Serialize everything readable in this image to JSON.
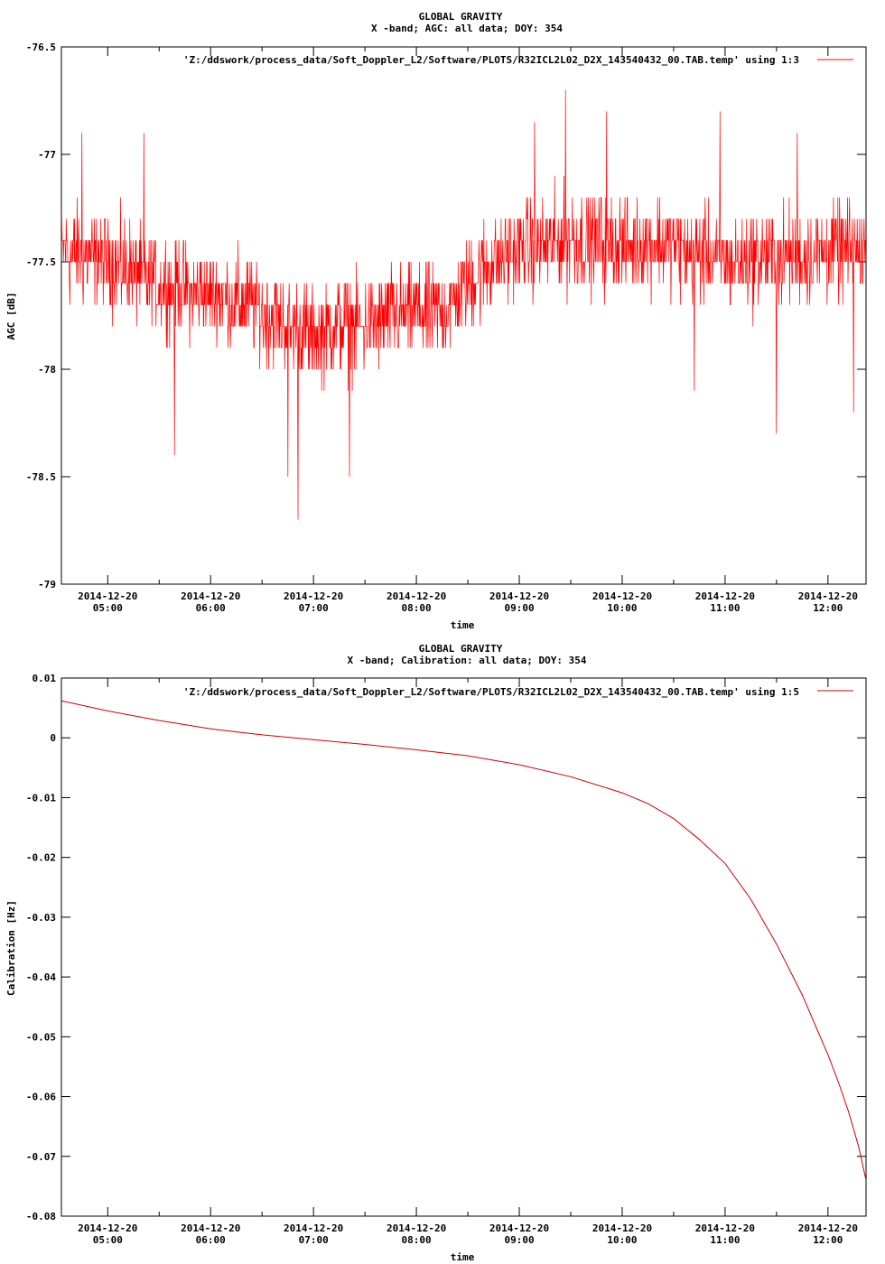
{
  "chart_data": [
    {
      "type": "line",
      "title": "GLOBAL GRAVITY",
      "subtitle": "X -band; AGC: all data; DOY: 354",
      "xlabel": "time",
      "ylabel": "AGC [dB]",
      "ylim": [
        -79,
        -76.5
      ],
      "yticks": [
        "-76.5",
        "-77",
        "-77.5",
        "-78",
        "-78.5",
        "-79"
      ],
      "ytick_values": [
        -76.5,
        -77,
        -77.5,
        -78,
        -78.5,
        -79
      ],
      "xlim_hours": [
        4.55,
        12.37
      ],
      "xticks_hours": [
        5,
        6,
        7,
        8,
        9,
        10,
        11,
        12
      ],
      "xtick_dates": [
        "2014-12-20",
        "2014-12-20",
        "2014-12-20",
        "2014-12-20",
        "2014-12-20",
        "2014-12-20",
        "2014-12-20",
        "2014-12-20"
      ],
      "xtick_times": [
        "05:00",
        "06:00",
        "07:00",
        "08:00",
        "09:00",
        "10:00",
        "11:00",
        "12:00"
      ],
      "minor_xticks_hours": [
        5.5,
        6.5,
        7.5,
        8.5,
        9.5,
        10.5,
        11.5
      ],
      "legend": "'Z:/ddswork/process_data/Soft_Doppler_L2/Software/PLOTS/R32ICL2L02_D2X_143540432_00.TAB.temp' using 1:3",
      "legend_position": "top-right",
      "grid": false,
      "series": [
        {
          "color": "#ff0000",
          "trend_x": [
            4.55,
            5.0,
            5.5,
            6.0,
            6.5,
            6.75,
            7.0,
            7.25,
            7.5,
            8.0,
            8.25,
            8.5,
            8.75,
            9.0,
            9.5,
            10.0,
            10.5,
            11.0,
            11.5,
            12.0,
            12.37
          ],
          "trend_y": [
            -77.45,
            -77.5,
            -77.6,
            -77.65,
            -77.72,
            -77.8,
            -77.85,
            -77.8,
            -77.8,
            -77.72,
            -77.75,
            -77.6,
            -77.5,
            -77.45,
            -77.4,
            -77.42,
            -77.42,
            -77.5,
            -77.48,
            -77.45,
            -77.45
          ],
          "spread": 0.2,
          "spikes": [
            {
              "x": 6.85,
              "y": -78.7
            },
            {
              "x": 6.75,
              "y": -78.5
            },
            {
              "x": 9.45,
              "y": -76.7
            },
            {
              "x": 9.15,
              "y": -76.85
            },
            {
              "x": 9.85,
              "y": -76.8
            },
            {
              "x": 5.35,
              "y": -76.9
            },
            {
              "x": 4.75,
              "y": -76.9
            },
            {
              "x": 10.95,
              "y": -76.8
            },
            {
              "x": 11.7,
              "y": -76.9
            },
            {
              "x": 11.5,
              "y": -78.3
            },
            {
              "x": 5.65,
              "y": -78.4
            },
            {
              "x": 7.35,
              "y": -78.5
            },
            {
              "x": 10.7,
              "y": -78.1
            },
            {
              "x": 12.25,
              "y": -78.2
            }
          ]
        }
      ]
    },
    {
      "type": "line",
      "title": "GLOBAL GRAVITY",
      "subtitle": "X -band; Calibration: all data; DOY: 354",
      "xlabel": "time",
      "ylabel": "Calibration [Hz]",
      "ylim": [
        -0.08,
        0.01
      ],
      "yticks": [
        "0.01",
        "0",
        "-0.01",
        "-0.02",
        "-0.03",
        "-0.04",
        "-0.05",
        "-0.06",
        "-0.07",
        "-0.08"
      ],
      "ytick_values": [
        0.01,
        0,
        -0.01,
        -0.02,
        -0.03,
        -0.04,
        -0.05,
        -0.06,
        -0.07,
        -0.08
      ],
      "xlim_hours": [
        4.55,
        12.37
      ],
      "xticks_hours": [
        5,
        6,
        7,
        8,
        9,
        10,
        11,
        12
      ],
      "xtick_dates": [
        "2014-12-20",
        "2014-12-20",
        "2014-12-20",
        "2014-12-20",
        "2014-12-20",
        "2014-12-20",
        "2014-12-20",
        "2014-12-20"
      ],
      "xtick_times": [
        "05:00",
        "06:00",
        "07:00",
        "08:00",
        "09:00",
        "10:00",
        "11:00",
        "12:00"
      ],
      "minor_xticks_hours": [
        5.5,
        6.5,
        7.5,
        8.5,
        9.5,
        10.5,
        11.5
      ],
      "legend": "'Z:/ddswork/process_data/Soft_Doppler_L2/Software/PLOTS/R32ICL2L02_D2X_143540432_00.TAB.temp' using 1:5",
      "legend_position": "top-right",
      "grid": false,
      "series": [
        {
          "color": "#cc0000",
          "x": [
            4.55,
            5.0,
            5.5,
            6.0,
            6.5,
            7.0,
            7.5,
            8.0,
            8.5,
            9.0,
            9.5,
            10.0,
            10.25,
            10.5,
            10.75,
            11.0,
            11.25,
            11.5,
            11.75,
            12.0,
            12.1,
            12.2,
            12.3,
            12.37
          ],
          "y": [
            0.0062,
            0.0045,
            0.0029,
            0.0015,
            0.0005,
            -0.0003,
            -0.0011,
            -0.002,
            -0.003,
            -0.0045,
            -0.0065,
            -0.0092,
            -0.011,
            -0.0135,
            -0.017,
            -0.021,
            -0.027,
            -0.0345,
            -0.043,
            -0.053,
            -0.0575,
            -0.0625,
            -0.0685,
            -0.074
          ]
        }
      ]
    }
  ]
}
